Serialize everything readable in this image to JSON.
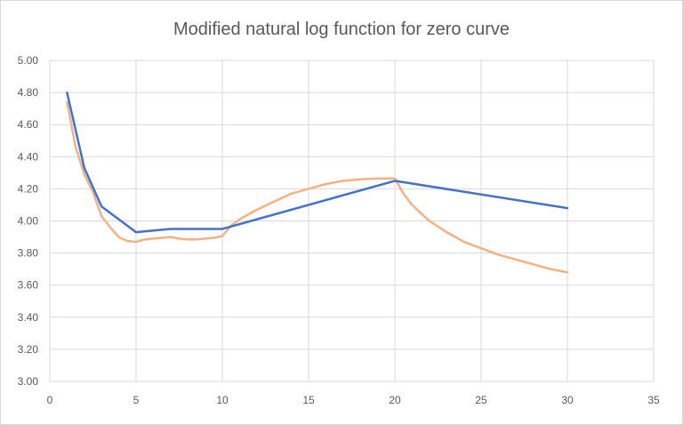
{
  "chart_data": {
    "type": "scatter",
    "title": "Modified natural log function for zero curve",
    "xlabel": "",
    "ylabel": "",
    "xlim": [
      0,
      35
    ],
    "ylim": [
      3.0,
      5.0
    ],
    "x_ticks": [
      "0",
      "5",
      "10",
      "15",
      "20",
      "25",
      "30",
      "35"
    ],
    "y_ticks": [
      "3.00",
      "3.20",
      "3.40",
      "3.60",
      "3.80",
      "4.00",
      "4.20",
      "4.40",
      "4.60",
      "4.80",
      "5.00"
    ],
    "grid": true,
    "legend": "none",
    "series": [
      {
        "color": "#4472c4",
        "points": [
          [
            1,
            4.8
          ],
          [
            2,
            4.33
          ],
          [
            3,
            4.09
          ],
          [
            5,
            3.93
          ],
          [
            7,
            3.95
          ],
          [
            10,
            3.95
          ],
          [
            20,
            4.25
          ],
          [
            30,
            4.08
          ]
        ]
      },
      {
        "color": "#f4b183",
        "points": [
          [
            1,
            4.74
          ],
          [
            1.5,
            4.46
          ],
          [
            2,
            4.29
          ],
          [
            2.5,
            4.18
          ],
          [
            3,
            4.03
          ],
          [
            3.5,
            3.96
          ],
          [
            4,
            3.9
          ],
          [
            4.5,
            3.875
          ],
          [
            5,
            3.87
          ],
          [
            5.5,
            3.885
          ],
          [
            6,
            3.89
          ],
          [
            7,
            3.9
          ],
          [
            7.5,
            3.89
          ],
          [
            8,
            3.885
          ],
          [
            8.5,
            3.885
          ],
          [
            9,
            3.89
          ],
          [
            9.5,
            3.895
          ],
          [
            10,
            3.905
          ],
          [
            10.5,
            3.97
          ],
          [
            11,
            4.01
          ],
          [
            12,
            4.07
          ],
          [
            13,
            4.12
          ],
          [
            14,
            4.17
          ],
          [
            15,
            4.2
          ],
          [
            16,
            4.23
          ],
          [
            17,
            4.25
          ],
          [
            18,
            4.26
          ],
          [
            19,
            4.265
          ],
          [
            20,
            4.265
          ],
          [
            20.5,
            4.17
          ],
          [
            21,
            4.1
          ],
          [
            22,
            4.0
          ],
          [
            23,
            3.93
          ],
          [
            24,
            3.87
          ],
          [
            25,
            3.83
          ],
          [
            26,
            3.79
          ],
          [
            27,
            3.76
          ],
          [
            28,
            3.73
          ],
          [
            29,
            3.7
          ],
          [
            30,
            3.68
          ]
        ]
      }
    ]
  }
}
